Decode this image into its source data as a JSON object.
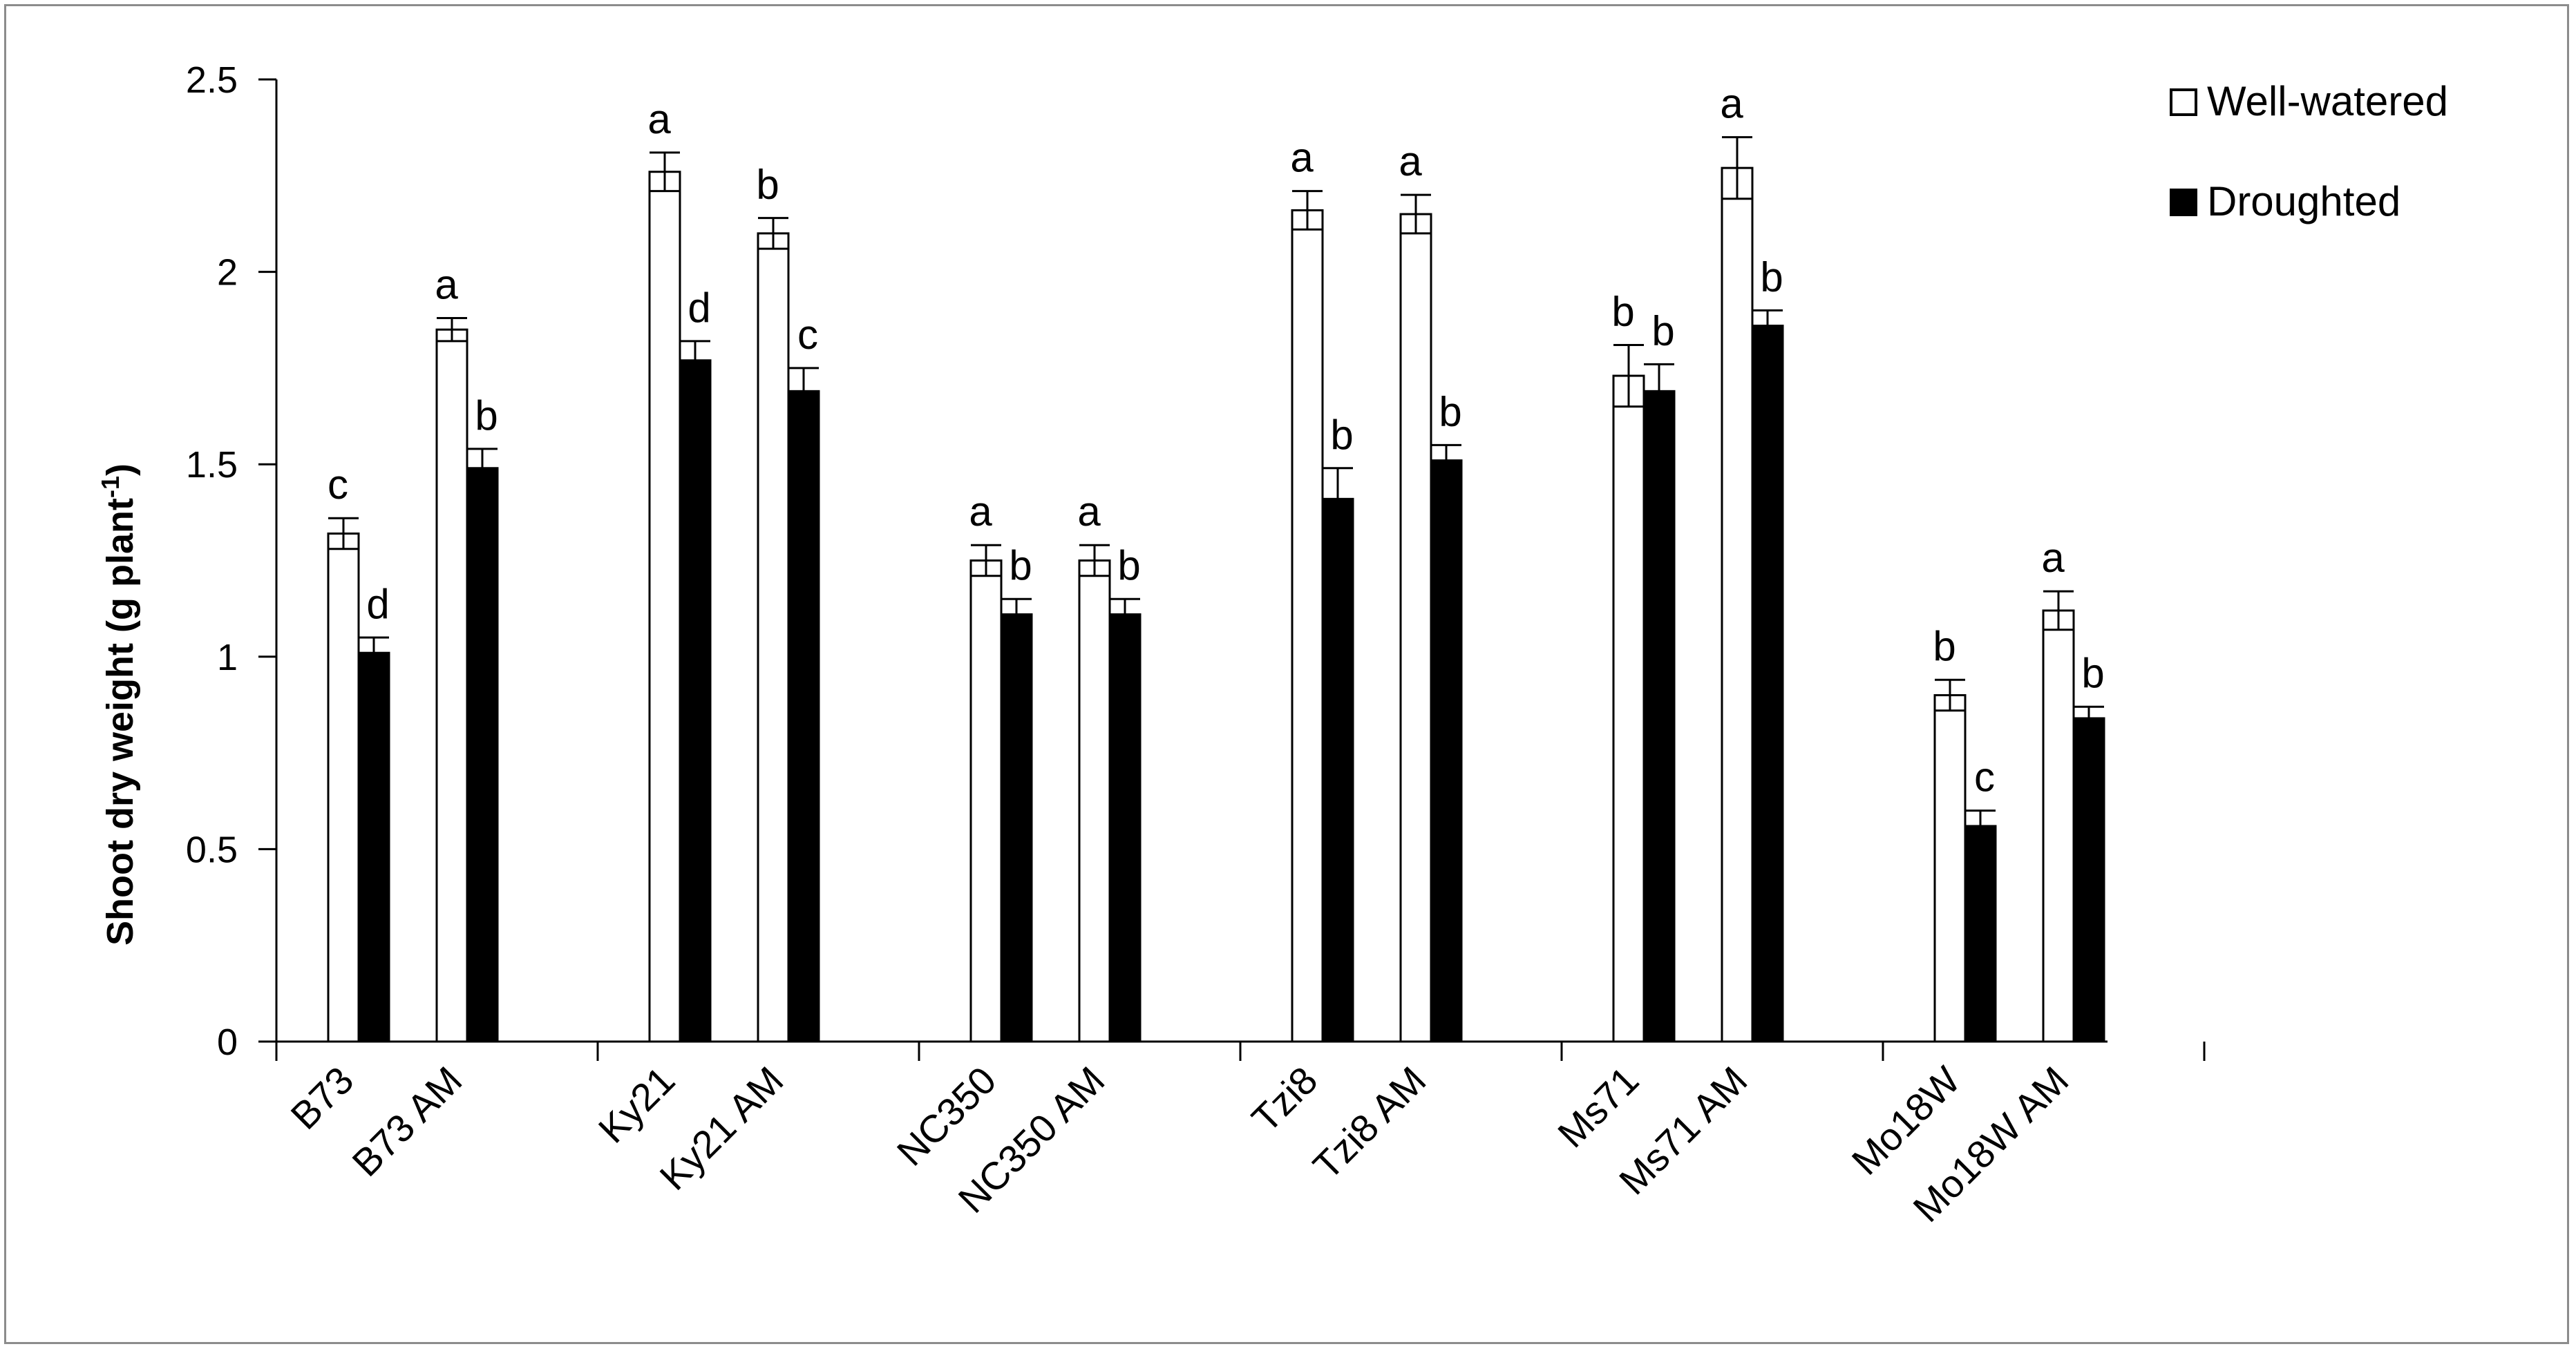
{
  "chart_data": {
    "type": "bar",
    "title": "",
    "xlabel": "",
    "ylabel": "Shoot dry weight (g plant",
    "ylabel_superscript": "-1",
    "ylabel_close": ")",
    "ylim": [
      0,
      2.5
    ],
    "yticks": [
      "0",
      "0.5",
      "1",
      "1.5",
      "2",
      "2.5"
    ],
    "grid": false,
    "legend_position": "top-right",
    "categories": [
      "B73",
      "B73 AM",
      "Ky21",
      "Ky21 AM",
      "NC350",
      "NC350 AM",
      "Tzi8",
      "Tzi8 AM",
      "Ms71",
      "Ms71 AM",
      "Mo18W",
      "Mo18W AM"
    ],
    "series": [
      {
        "name": "Well-watered",
        "color": "#ffffff",
        "values": [
          1.32,
          1.85,
          2.26,
          2.1,
          1.25,
          1.25,
          2.16,
          2.15,
          1.73,
          2.27,
          0.9,
          1.12
        ],
        "errors": [
          0.04,
          0.03,
          0.05,
          0.04,
          0.04,
          0.04,
          0.05,
          0.05,
          0.08,
          0.08,
          0.04,
          0.05
        ],
        "significance": [
          "c",
          "a",
          "a",
          "b",
          "a",
          "a",
          "a",
          "a",
          "b",
          "a",
          "b",
          "a"
        ]
      },
      {
        "name": "Droughted",
        "color": "#000000",
        "values": [
          1.01,
          1.49,
          1.77,
          1.69,
          1.11,
          1.11,
          1.41,
          1.51,
          1.69,
          1.86,
          0.56,
          0.84
        ],
        "errors": [
          0.04,
          0.05,
          0.05,
          0.06,
          0.04,
          0.04,
          0.08,
          0.04,
          0.07,
          0.04,
          0.04,
          0.03
        ],
        "significance": [
          "d",
          "b",
          "d",
          "c",
          "b",
          "b",
          "b",
          "b",
          "b",
          "b",
          "c",
          "b"
        ]
      }
    ]
  }
}
